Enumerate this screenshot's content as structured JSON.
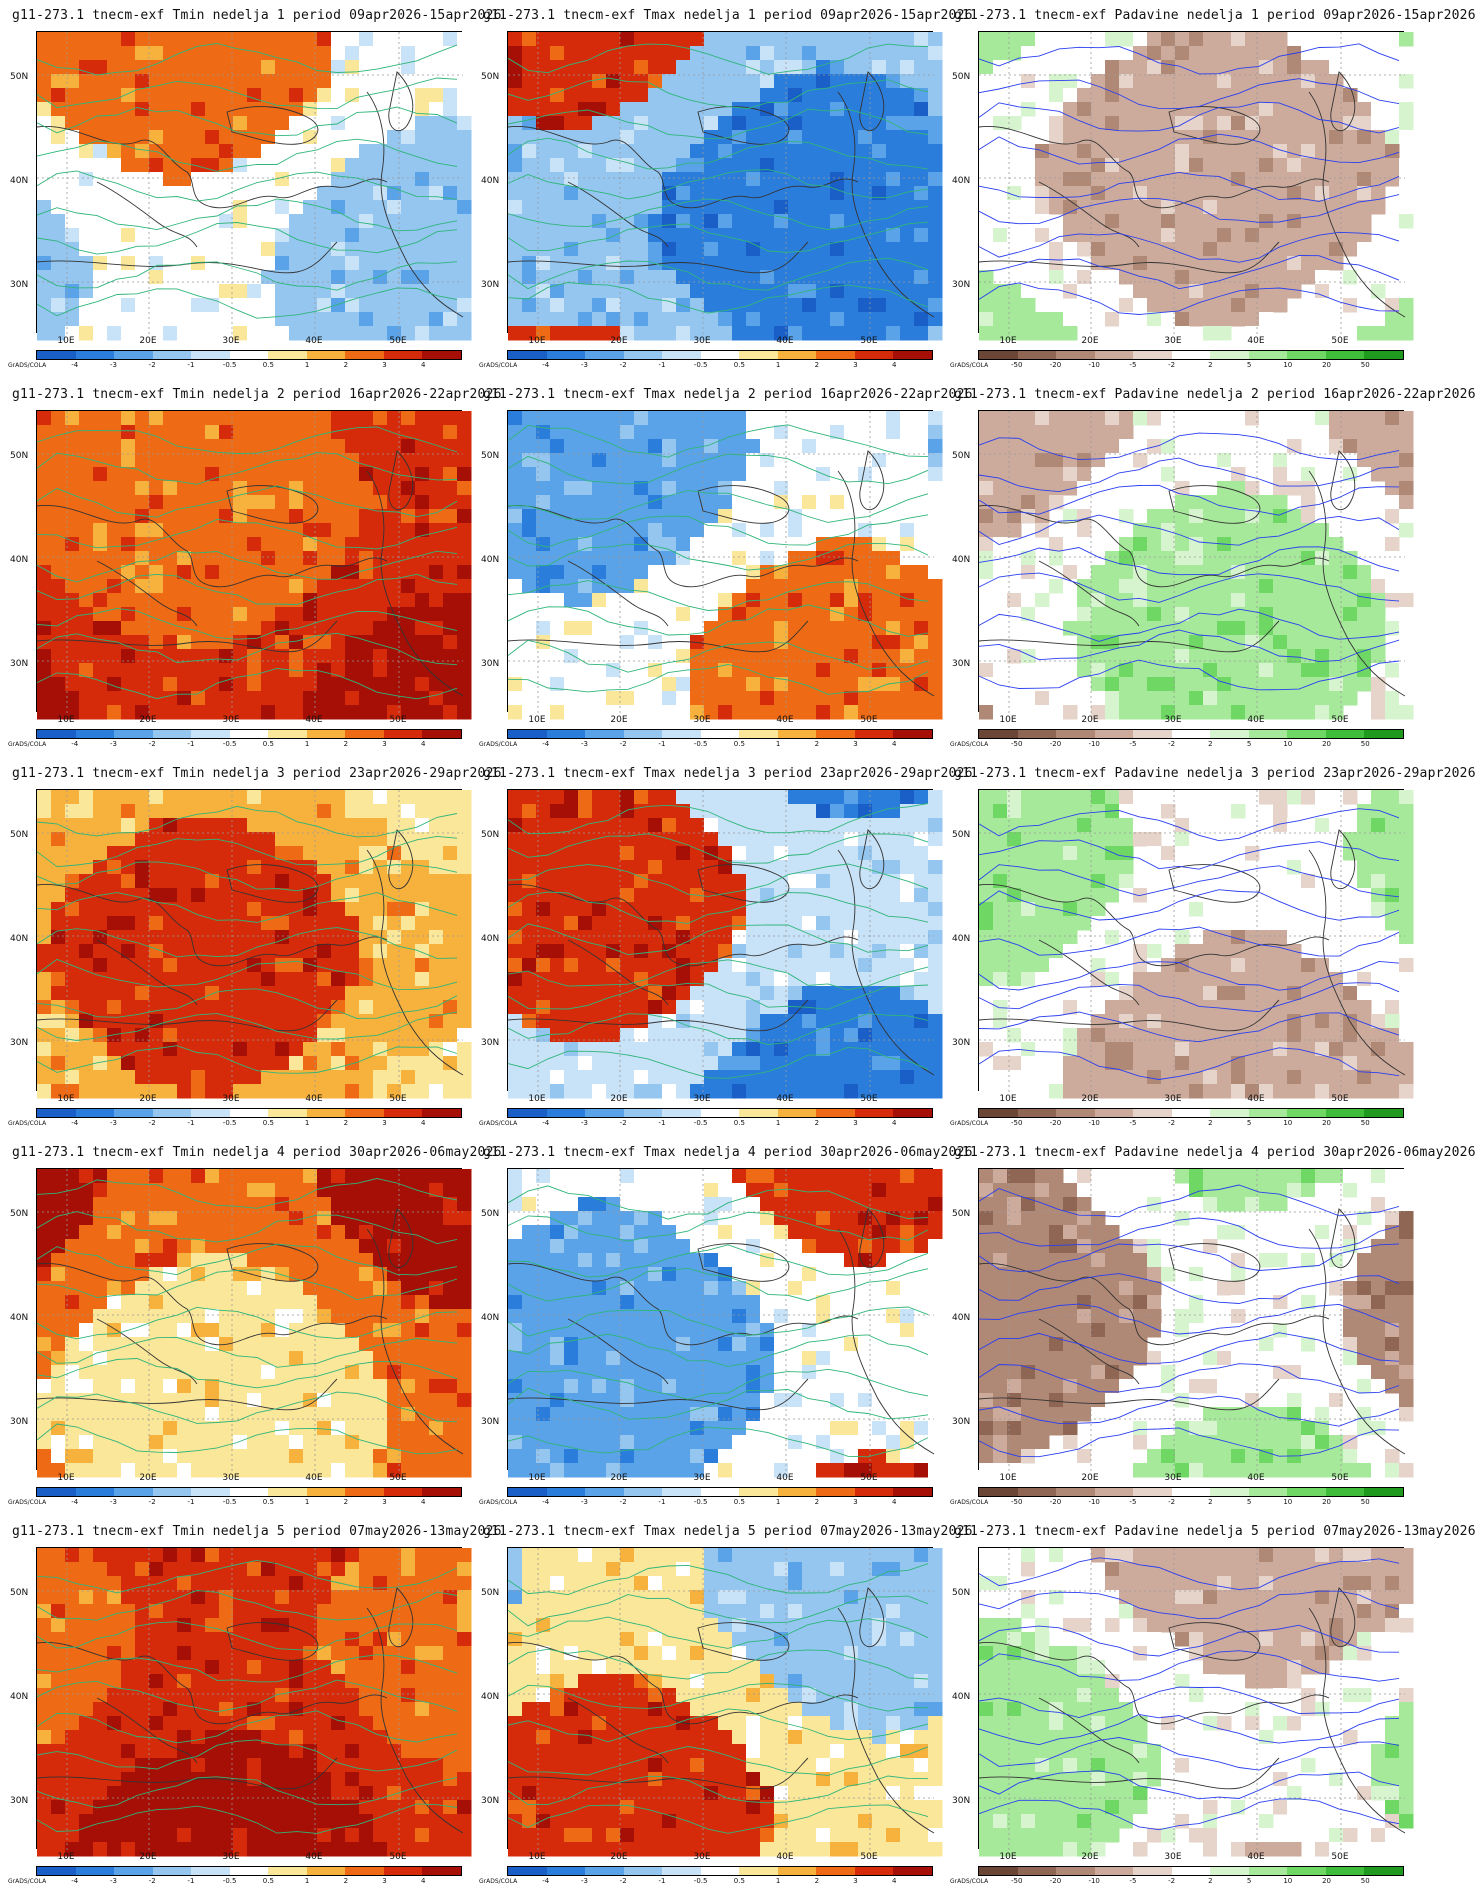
{
  "latitude_labels": [
    "50N",
    "40N",
    "30N"
  ],
  "longitude_labels": [
    "10E",
    "20E",
    "30E",
    "40E",
    "50E"
  ],
  "credit": "GrADS/COLA",
  "scales": {
    "temp": {
      "labels": [
        "-4",
        "-3",
        "-2",
        "-1",
        "-0.5",
        "0.5",
        "1",
        "2",
        "3",
        "4"
      ],
      "colors": [
        "#1a5fc7",
        "#2b7ddc",
        "#5aa3e8",
        "#94c6f0",
        "#c8e2f7",
        "#ffffff",
        "#fbe79a",
        "#f7b23d",
        "#ee6a14",
        "#d62b0a",
        "#a50f05"
      ]
    },
    "precip": {
      "labels": [
        "-50",
        "-20",
        "-10",
        "-5",
        "-2",
        "2",
        "5",
        "10",
        "20",
        "50"
      ],
      "colors": [
        "#6b4536",
        "#8f6553",
        "#b08876",
        "#cdab9c",
        "#e6d3c9",
        "#ffffff",
        "#d6f5cf",
        "#a6e99a",
        "#6fd865",
        "#3fbd3a",
        "#1f9a1f"
      ]
    }
  },
  "panels": [
    {
      "title": "g11-273.1 tnecm-exf Tmin nedelja 1 period 09apr2026-15apr2026",
      "variable": "Tmin",
      "week": 1
    },
    {
      "title": "g11-273.1 tnecm-exf Tmax nedelja 1 period 09apr2026-15apr2026",
      "variable": "Tmax",
      "week": 1
    },
    {
      "title": "g11-273.1 tnecm-exf Padavine nedelja 1 period 09apr2026-15apr2026",
      "variable": "Padavine",
      "week": 1
    },
    {
      "title": "g11-273.1 tnecm-exf Tmin nedelja 2 period 16apr2026-22apr2026",
      "variable": "Tmin",
      "week": 2
    },
    {
      "title": "g11-273.1 tnecm-exf Tmax nedelja 2 period 16apr2026-22apr2026",
      "variable": "Tmax",
      "week": 2
    },
    {
      "title": "g11-273.1 tnecm-exf Padavine nedelja 2 period 16apr2026-22apr2026",
      "variable": "Padavine",
      "week": 2
    },
    {
      "title": "g11-273.1 tnecm-exf Tmin nedelja 3 period 23apr2026-29apr2026",
      "variable": "Tmin",
      "week": 3
    },
    {
      "title": "g11-273.1 tnecm-exf Tmax nedelja 3 period 23apr2026-29apr2026",
      "variable": "Tmax",
      "week": 3
    },
    {
      "title": "g11-273.1 tnecm-exf Padavine nedelja 3 period 23apr2026-29apr2026",
      "variable": "Padavine",
      "week": 3
    },
    {
      "title": "g11-273.1 tnecm-exf Tmin nedelja 4 period 30apr2026-06may2026",
      "variable": "Tmin",
      "week": 4
    },
    {
      "title": "g11-273.1 tnecm-exf Tmax nedelja 4 period 30apr2026-06may2026",
      "variable": "Tmax",
      "week": 4
    },
    {
      "title": "g11-273.1 tnecm-exf Padavine nedelja 4 period 30apr2026-06may2026",
      "variable": "Padavine",
      "week": 4
    },
    {
      "title": "g11-273.1 tnecm-exf Tmin nedelja 5 period 07may2026-13may2026",
      "variable": "Tmin",
      "week": 5
    },
    {
      "title": "g11-273.1 tnecm-exf Tmax nedelja 5 period 07may2026-13may2026",
      "variable": "Tmax",
      "week": 5
    },
    {
      "title": "g11-273.1 tnecm-exf Padavine nedelja 5 period 07may2026-13may2026",
      "variable": "Padavine",
      "week": 5
    }
  ]
}
